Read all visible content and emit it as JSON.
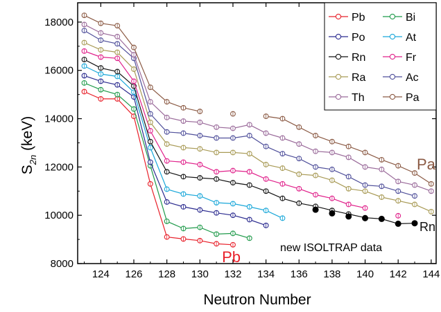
{
  "chart_data": {
    "type": "line",
    "title": "",
    "xlabel": "Neutron Number",
    "ylabel_main": "S",
    "ylabel_sub": "2n",
    "ylabel_unit": "(keV)",
    "xlim": [
      122.6,
      144.3
    ],
    "ylim": [
      8000,
      18800
    ],
    "xticks": [
      124,
      126,
      128,
      130,
      132,
      134,
      136,
      138,
      140,
      142,
      144
    ],
    "yticks": [
      8000,
      10000,
      12000,
      14000,
      16000,
      18000
    ],
    "grid": false,
    "legend_position": "top-right",
    "series": [
      {
        "name": "Pb",
        "color": "#e8202a",
        "x": [
          123,
          124,
          125,
          126,
          127,
          128,
          129,
          130,
          131,
          132
        ],
        "y": [
          15120,
          14820,
          14820,
          14100,
          11300,
          9100,
          9020,
          8950,
          8820,
          8780
        ]
      },
      {
        "name": "Bi",
        "color": "#1f9a4a",
        "x": [
          123,
          124,
          125,
          126,
          127,
          128,
          129,
          130,
          131,
          132,
          133
        ],
        "y": [
          15480,
          15200,
          15000,
          14400,
          12050,
          9750,
          9450,
          9500,
          9220,
          9250,
          9050
        ]
      },
      {
        "name": "Po",
        "color": "#2b2b8f",
        "x": [
          123,
          124,
          125,
          126,
          127,
          128,
          129,
          130,
          131,
          132,
          133,
          134
        ],
        "y": [
          15780,
          15550,
          15400,
          14900,
          12200,
          10550,
          10350,
          10220,
          10100,
          10000,
          9820,
          9580
        ]
      },
      {
        "name": "At",
        "color": "#19a7d9",
        "x": [
          123,
          124,
          125,
          126,
          127,
          128,
          129,
          130,
          131,
          132,
          133,
          134,
          135
        ],
        "y": [
          16180,
          15850,
          15750,
          15100,
          12800,
          11080,
          10880,
          10800,
          10520,
          10480,
          10350,
          10200,
          9880
        ]
      },
      {
        "name": "Rn",
        "color": "#111111",
        "x": [
          123,
          124,
          125,
          126,
          127,
          128,
          129,
          130,
          131,
          132,
          133,
          134,
          135,
          136,
          137,
          138,
          139,
          140,
          141,
          142,
          143
        ],
        "y": [
          16450,
          16100,
          15950,
          15350,
          13050,
          11800,
          11600,
          11550,
          11500,
          11350,
          11250,
          11000,
          10700,
          10500,
          10370,
          10200,
          10050,
          9900,
          9850,
          9650,
          9670
        ]
      },
      {
        "name": "Fr",
        "color": "#e0208a",
        "x": [
          123,
          124,
          125,
          126,
          127,
          128,
          129,
          130,
          131,
          132,
          133,
          134,
          135,
          136,
          137,
          138,
          139,
          140,
          142
        ],
        "y": [
          16800,
          16550,
          16500,
          15550,
          13500,
          12250,
          12200,
          12100,
          11800,
          11850,
          11800,
          11500,
          11300,
          11100,
          10850,
          10700,
          10450,
          10300,
          9980
        ]
      },
      {
        "name": "Ra",
        "color": "#a89a55",
        "x": [
          123,
          124,
          125,
          126,
          127,
          128,
          129,
          130,
          131,
          132,
          133,
          134,
          135,
          136,
          137,
          138,
          139,
          140,
          141,
          142,
          143,
          144
        ],
        "y": [
          17150,
          16850,
          16750,
          16050,
          13850,
          12950,
          12800,
          12750,
          12600,
          12600,
          12550,
          12100,
          11950,
          11700,
          11650,
          11450,
          11100,
          11000,
          10750,
          10600,
          10450,
          10150
        ]
      },
      {
        "name": "Ac",
        "color": "#4f4f9a",
        "x": [
          123,
          124,
          125,
          126,
          127,
          128,
          129,
          130,
          131,
          132,
          133,
          134,
          135,
          136,
          137,
          138,
          139,
          140,
          141,
          142,
          143
        ],
        "y": [
          17650,
          17250,
          17100,
          16500,
          14200,
          13450,
          13400,
          13300,
          13200,
          13200,
          13300,
          12850,
          12550,
          12350,
          12000,
          11900,
          11600,
          11250,
          11200,
          11000,
          10800
        ]
      },
      {
        "name": "Th",
        "color": "#9a6a9a",
        "x": [
          123,
          124,
          125,
          126,
          127,
          128,
          129,
          130,
          131,
          132,
          133,
          134,
          135,
          136,
          137,
          138,
          139,
          140,
          141,
          142,
          143,
          144
        ],
        "y": [
          17900,
          17550,
          17400,
          16650,
          14700,
          14050,
          13900,
          13850,
          13650,
          13600,
          13750,
          13400,
          13200,
          12950,
          12650,
          12600,
          12400,
          12000,
          11900,
          11400,
          11250,
          11000
        ]
      },
      {
        "name": "Pa",
        "color": "#8b5a44",
        "x": [
          123,
          124,
          125,
          126,
          127,
          128,
          129,
          130,
          132,
          134,
          135,
          136,
          137,
          138,
          139,
          140,
          141,
          142,
          143,
          144
        ],
        "y": [
          18280,
          17950,
          17850,
          16950,
          15300,
          14700,
          14450,
          14300,
          14200,
          14100,
          14000,
          13650,
          13300,
          13050,
          12850,
          12600,
          12300,
          12050,
          11750,
          11300
        ]
      }
    ],
    "isoltrap_points": {
      "name": "Rn",
      "x": [
        137,
        138,
        139,
        140,
        141,
        142,
        143
      ],
      "y": [
        10230,
        10080,
        9950,
        9880,
        9850,
        9650,
        9670
      ]
    },
    "annotations": {
      "pb_label": "Pb",
      "pa_label": "Pa",
      "rn_label": "Rn",
      "isoltrap_label": "new ISOLTRAP data"
    },
    "colors": {
      "pb_label": "#e8202a",
      "pa_label": "#8b5a44",
      "rn_label": "#111111"
    }
  }
}
